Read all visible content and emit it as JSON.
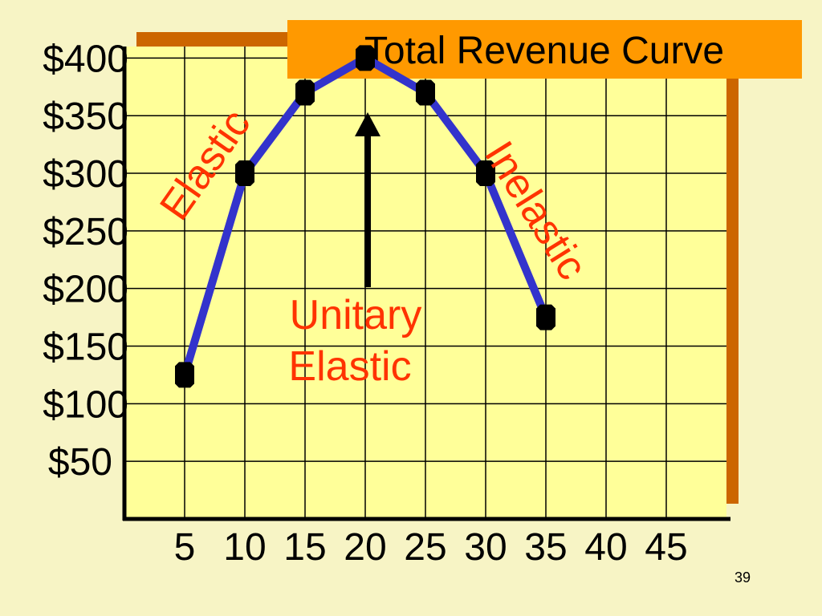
{
  "slide": {
    "page_number": "39"
  },
  "colors": {
    "background": "#f7f4c5",
    "plot_fill": "#ffff99",
    "shadow": "#cc6600",
    "title_box": "#ff9900",
    "line": "#3333cc",
    "marker": "#000000",
    "annotation": "#ff3300",
    "arrow": "#000000"
  },
  "chart_data": {
    "type": "line",
    "title": "Total Revenue Curve",
    "xlabel": "",
    "ylabel": "",
    "x_ticks": [
      "5",
      "10",
      "15",
      "20",
      "25",
      "30",
      "35",
      "40",
      "45"
    ],
    "y_ticks": [
      "$50",
      "$100",
      "$150",
      "$200",
      "$250",
      "$300",
      "$350",
      "$400"
    ],
    "xlim": [
      0,
      50
    ],
    "ylim": [
      0,
      410
    ],
    "grid": true,
    "series": [
      {
        "x": [
          5,
          10,
          15,
          20,
          25,
          30,
          35
        ],
        "y": [
          125,
          300,
          370,
          400,
          370,
          300,
          175
        ]
      }
    ],
    "annotations": {
      "elastic": "Elastic",
      "inelastic": "Inelastic",
      "unitary_line1": "Unitary",
      "unitary_line2": "Elastic"
    },
    "arrow_target": {
      "x": 20,
      "y": 400
    }
  }
}
